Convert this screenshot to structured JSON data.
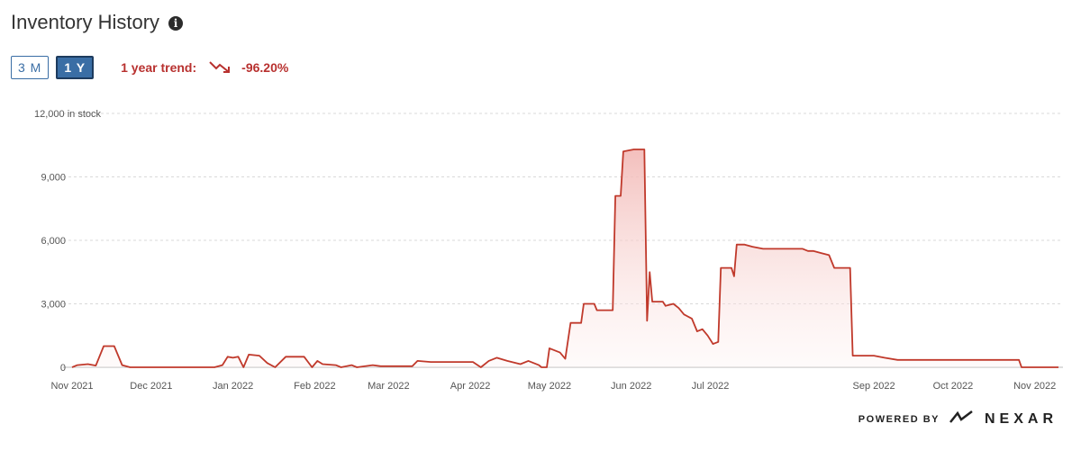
{
  "header": {
    "title": "Inventory History",
    "info_icon": "info-icon"
  },
  "range": {
    "options": [
      "3 M",
      "1 Y"
    ],
    "selected": "1 Y"
  },
  "trend": {
    "label": "1 year trend:",
    "value": "-96.20%",
    "icon": "trend-down-icon",
    "color": "#b8312f"
  },
  "footer": {
    "powered_by": "POWERED BY",
    "brand": "NEXAR"
  },
  "chart_data": {
    "type": "area",
    "line_color": "#c0392b",
    "fill_color": "#f2b8b5",
    "y_unit_label": "in stock",
    "ylim": [
      0,
      12000
    ],
    "y_ticks": [
      "0",
      "3,000",
      "6,000",
      "9,000",
      "12,000"
    ],
    "y_tick_values": [
      0,
      3000,
      6000,
      9000,
      12000
    ],
    "grid": true,
    "x_ticks": [
      "Nov 2021",
      "Dec 2021",
      "Jan 2022",
      "Feb 2022",
      "Mar 2022",
      "Apr 2022",
      "May 2022",
      "Jun 2022",
      "Jul 2022",
      "Sep 2022",
      "Oct 2022",
      "Nov 2022"
    ],
    "x_tick_dates": [
      "2021-11-01",
      "2021-12-01",
      "2022-01-01",
      "2022-02-01",
      "2022-03-01",
      "2022-04-01",
      "2022-05-01",
      "2022-06-01",
      "2022-07-01",
      "2022-09-01",
      "2022-10-01",
      "2022-11-01"
    ],
    "series": [
      {
        "points": [
          [
            "2021-11-01",
            0
          ],
          [
            "2021-11-03",
            100
          ],
          [
            "2021-11-07",
            150
          ],
          [
            "2021-11-10",
            80
          ],
          [
            "2021-11-13",
            1000
          ],
          [
            "2021-11-17",
            1000
          ],
          [
            "2021-11-20",
            100
          ],
          [
            "2021-11-23",
            0
          ],
          [
            "2021-12-25",
            0
          ],
          [
            "2021-12-28",
            100
          ],
          [
            "2021-12-30",
            500
          ],
          [
            "2022-01-01",
            450
          ],
          [
            "2022-01-03",
            500
          ],
          [
            "2022-01-05",
            0
          ],
          [
            "2022-01-07",
            600
          ],
          [
            "2022-01-11",
            550
          ],
          [
            "2022-01-14",
            200
          ],
          [
            "2022-01-17",
            0
          ],
          [
            "2022-01-21",
            500
          ],
          [
            "2022-01-28",
            500
          ],
          [
            "2022-01-31",
            0
          ],
          [
            "2022-02-02",
            300
          ],
          [
            "2022-02-04",
            150
          ],
          [
            "2022-02-09",
            100
          ],
          [
            "2022-02-11",
            0
          ],
          [
            "2022-02-15",
            100
          ],
          [
            "2022-02-17",
            0
          ],
          [
            "2022-02-23",
            100
          ],
          [
            "2022-02-26",
            50
          ],
          [
            "2022-03-10",
            50
          ],
          [
            "2022-03-12",
            300
          ],
          [
            "2022-03-17",
            250
          ],
          [
            "2022-04-02",
            250
          ],
          [
            "2022-04-05",
            0
          ],
          [
            "2022-04-08",
            300
          ],
          [
            "2022-04-11",
            450
          ],
          [
            "2022-04-15",
            300
          ],
          [
            "2022-04-20",
            150
          ],
          [
            "2022-04-23",
            300
          ],
          [
            "2022-04-27",
            100
          ],
          [
            "2022-04-28",
            0
          ],
          [
            "2022-04-30",
            0
          ],
          [
            "2022-05-01",
            900
          ],
          [
            "2022-05-05",
            700
          ],
          [
            "2022-05-07",
            400
          ],
          [
            "2022-05-09",
            2100
          ],
          [
            "2022-05-13",
            2100
          ],
          [
            "2022-05-14",
            3000
          ],
          [
            "2022-05-18",
            3000
          ],
          [
            "2022-05-19",
            2700
          ],
          [
            "2022-05-25",
            2700
          ],
          [
            "2022-05-26",
            8100
          ],
          [
            "2022-05-28",
            8100
          ],
          [
            "2022-05-29",
            10200
          ],
          [
            "2022-06-02",
            10300
          ],
          [
            "2022-06-06",
            10300
          ],
          [
            "2022-06-06",
            10300
          ],
          [
            "2022-06-07",
            2200
          ],
          [
            "2022-06-08",
            4500
          ],
          [
            "2022-06-09",
            3100
          ],
          [
            "2022-06-13",
            3100
          ],
          [
            "2022-06-14",
            2900
          ],
          [
            "2022-06-17",
            3000
          ],
          [
            "2022-06-19",
            2800
          ],
          [
            "2022-06-21",
            2500
          ],
          [
            "2022-06-24",
            2300
          ],
          [
            "2022-06-26",
            1700
          ],
          [
            "2022-06-28",
            1800
          ],
          [
            "2022-06-30",
            1500
          ],
          [
            "2022-07-02",
            1100
          ],
          [
            "2022-07-04",
            1200
          ],
          [
            "2022-07-05",
            4700
          ],
          [
            "2022-07-09",
            4700
          ],
          [
            "2022-07-10",
            4300
          ],
          [
            "2022-07-11",
            5800
          ],
          [
            "2022-07-14",
            5800
          ],
          [
            "2022-07-17",
            5700
          ],
          [
            "2022-07-21",
            5600
          ],
          [
            "2022-08-05",
            5600
          ],
          [
            "2022-08-07",
            5500
          ],
          [
            "2022-08-09",
            5500
          ],
          [
            "2022-08-12",
            5400
          ],
          [
            "2022-08-15",
            5300
          ],
          [
            "2022-08-17",
            4700
          ],
          [
            "2022-08-23",
            4700
          ],
          [
            "2022-08-24",
            550
          ],
          [
            "2022-09-01",
            550
          ],
          [
            "2022-09-05",
            450
          ],
          [
            "2022-09-10",
            350
          ],
          [
            "2022-10-10",
            350
          ],
          [
            "2022-10-26",
            350
          ],
          [
            "2022-10-27",
            0
          ],
          [
            "2022-11-10",
            0
          ]
        ]
      }
    ]
  }
}
